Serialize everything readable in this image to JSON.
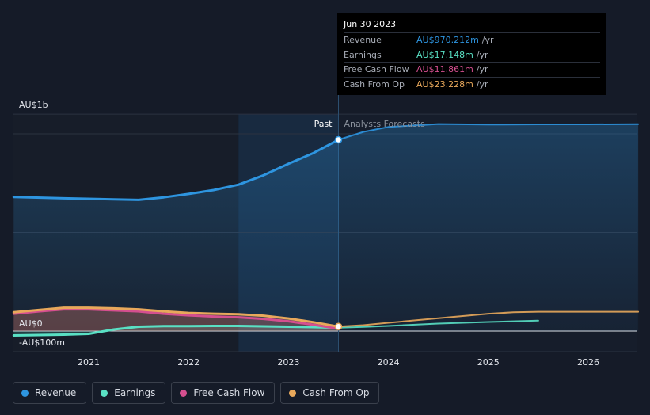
{
  "chart_data": {
    "type": "line",
    "currency": "AUD",
    "yticks": [
      {
        "label": "AU$1b",
        "value": 1000
      },
      {
        "label": "AU$0",
        "value": 0
      },
      {
        "label": "-AU$100m",
        "value": -100
      }
    ],
    "ylim": [
      -100,
      1100
    ],
    "xlim": [
      2020.3,
      2026.5
    ],
    "xticks": [
      {
        "label": "2021",
        "value": 2021
      },
      {
        "label": "2022",
        "value": 2022
      },
      {
        "label": "2023",
        "value": 2023
      },
      {
        "label": "2024",
        "value": 2024
      },
      {
        "label": "2025",
        "value": 2025
      },
      {
        "label": "2026",
        "value": 2026
      }
    ],
    "past_label": "Past",
    "forecast_label": "Analysts Forecasts",
    "divider_x": 2023.5,
    "highlight_start": 2022.5,
    "series": [
      {
        "name": "Revenue",
        "color": "#2e95e0",
        "past": [
          [
            2020.25,
            680
          ],
          [
            2020.75,
            673
          ],
          [
            2021.25,
            668
          ],
          [
            2021.5,
            665
          ],
          [
            2021.75,
            678
          ],
          [
            2022.0,
            695
          ],
          [
            2022.25,
            715
          ],
          [
            2022.5,
            742
          ],
          [
            2022.75,
            790
          ],
          [
            2023.0,
            848
          ],
          [
            2023.25,
            903
          ],
          [
            2023.5,
            970
          ]
        ],
        "forecast": [
          [
            2023.5,
            970
          ],
          [
            2023.75,
            1010
          ],
          [
            2024.0,
            1035
          ],
          [
            2024.5,
            1050
          ],
          [
            2025.0,
            1047
          ],
          [
            2025.5,
            1048
          ],
          [
            2026.0,
            1048
          ],
          [
            2026.5,
            1049
          ]
        ]
      },
      {
        "name": "Earnings",
        "color": "#59e0c4",
        "past": [
          [
            2020.25,
            -22
          ],
          [
            2020.75,
            -18
          ],
          [
            2021.0,
            -14
          ],
          [
            2021.25,
            8
          ],
          [
            2021.5,
            22
          ],
          [
            2021.75,
            25
          ],
          [
            2022.0,
            25
          ],
          [
            2022.25,
            26
          ],
          [
            2022.5,
            26
          ],
          [
            2022.75,
            24
          ],
          [
            2023.0,
            22
          ],
          [
            2023.25,
            20
          ],
          [
            2023.5,
            17
          ]
        ],
        "forecast": [
          [
            2023.5,
            17
          ],
          [
            2023.75,
            21
          ],
          [
            2024.0,
            26
          ],
          [
            2024.5,
            38
          ],
          [
            2025.0,
            46
          ],
          [
            2025.5,
            53
          ]
        ]
      },
      {
        "name": "Free Cash Flow",
        "color": "#d44f8f",
        "past": [
          [
            2020.25,
            88
          ],
          [
            2020.5,
            100
          ],
          [
            2020.75,
            110
          ],
          [
            2021.0,
            110
          ],
          [
            2021.25,
            105
          ],
          [
            2021.5,
            100
          ],
          [
            2021.75,
            88
          ],
          [
            2022.0,
            80
          ],
          [
            2022.25,
            74
          ],
          [
            2022.5,
            70
          ],
          [
            2022.75,
            62
          ],
          [
            2023.0,
            50
          ],
          [
            2023.25,
            32
          ],
          [
            2023.5,
            12
          ]
        ],
        "forecast": []
      },
      {
        "name": "Cash From Op",
        "color": "#e8a85b",
        "past": [
          [
            2020.25,
            95
          ],
          [
            2020.5,
            107
          ],
          [
            2020.75,
            118
          ],
          [
            2021.0,
            118
          ],
          [
            2021.25,
            115
          ],
          [
            2021.5,
            110
          ],
          [
            2021.75,
            100
          ],
          [
            2022.0,
            92
          ],
          [
            2022.25,
            88
          ],
          [
            2022.5,
            85
          ],
          [
            2022.75,
            78
          ],
          [
            2023.0,
            64
          ],
          [
            2023.25,
            45
          ],
          [
            2023.5,
            23
          ]
        ],
        "forecast": [
          [
            2023.5,
            23
          ],
          [
            2023.75,
            30
          ],
          [
            2024.0,
            42
          ],
          [
            2024.5,
            65
          ],
          [
            2025.0,
            88
          ],
          [
            2025.25,
            95
          ],
          [
            2025.5,
            98
          ],
          [
            2026.0,
            98
          ],
          [
            2026.5,
            98
          ]
        ]
      }
    ],
    "tooltip": {
      "date": "Jun 30 2023",
      "rows": [
        {
          "label": "Revenue",
          "value": "AU$970.212m",
          "unit": "/yr",
          "color": "#2e95e0"
        },
        {
          "label": "Earnings",
          "value": "AU$17.148m",
          "unit": "/yr",
          "color": "#59e0c4"
        },
        {
          "label": "Free Cash Flow",
          "value": "AU$11.861m",
          "unit": "/yr",
          "color": "#d44f8f"
        },
        {
          "label": "Cash From Op",
          "value": "AU$23.228m",
          "unit": "/yr",
          "color": "#e8a85b"
        }
      ]
    }
  },
  "legend": [
    {
      "label": "Revenue",
      "color": "#2e95e0"
    },
    {
      "label": "Earnings",
      "color": "#59e0c4"
    },
    {
      "label": "Free Cash Flow",
      "color": "#d44f8f"
    },
    {
      "label": "Cash From Op",
      "color": "#e8a85b"
    }
  ]
}
